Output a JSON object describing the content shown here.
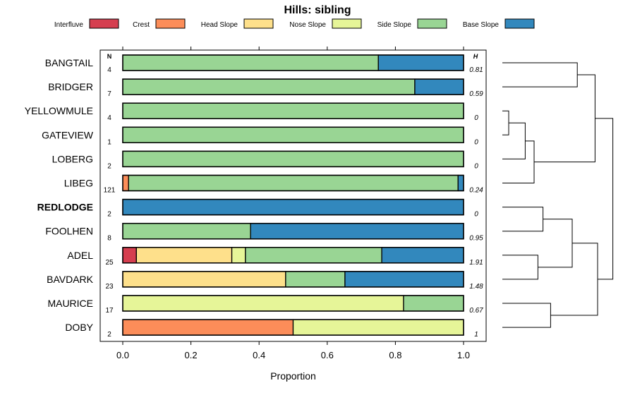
{
  "chart_data": {
    "type": "bar",
    "subtype": "stacked-horizontal-proportion",
    "title": "Hills: sibling",
    "xlabel": "Proportion",
    "ylabel": "",
    "xlim": [
      0,
      1
    ],
    "x_ticks": [
      0.0,
      0.2,
      0.4,
      0.6,
      0.8,
      1.0
    ],
    "x_tick_labels": [
      "0.0",
      "0.2",
      "0.4",
      "0.6",
      "0.8",
      "1.0"
    ],
    "n_header": "N",
    "h_header": "H",
    "legend_position": "top",
    "legend": [
      {
        "name": "Interfluve",
        "color": "#d53e4f"
      },
      {
        "name": "Crest",
        "color": "#fc8d59"
      },
      {
        "name": "Head Slope",
        "color": "#fee08b"
      },
      {
        "name": "Nose Slope",
        "color": "#e6f598"
      },
      {
        "name": "Side Slope",
        "color": "#99d594"
      },
      {
        "name": "Base Slope",
        "color": "#3288bd"
      }
    ],
    "categories": [
      "BANGTAIL",
      "BRIDGER",
      "YELLOWMULE",
      "GATEVIEW",
      "LOBERG",
      "LIBEG",
      "REDLODGE",
      "FOOLHEN",
      "ADEL",
      "BAVDARK",
      "MAURICE",
      "DOBY"
    ],
    "highlighted_category": "REDLODGE",
    "n_values": [
      "4",
      "7",
      "4",
      "1",
      "2",
      "121",
      "2",
      "8",
      "25",
      "23",
      "17",
      "2"
    ],
    "h_values": [
      "0.81",
      "0.59",
      "0",
      "0",
      "0",
      "0.24",
      "0",
      "0.95",
      "1.91",
      "1.48",
      "0.67",
      "1"
    ],
    "series": [
      {
        "name": "Interfluve",
        "values": [
          0,
          0,
          0,
          0,
          0,
          0,
          0,
          0,
          0.04,
          0,
          0,
          0
        ]
      },
      {
        "name": "Crest",
        "values": [
          0,
          0,
          0,
          0,
          0,
          0.017,
          0,
          0,
          0,
          0,
          0,
          0.5
        ]
      },
      {
        "name": "Head Slope",
        "values": [
          0,
          0,
          0,
          0,
          0,
          0,
          0,
          0,
          0.28,
          0.478,
          0,
          0
        ]
      },
      {
        "name": "Nose Slope",
        "values": [
          0,
          0,
          0,
          0,
          0,
          0,
          0,
          0,
          0.04,
          0,
          0.824,
          0.5
        ]
      },
      {
        "name": "Side Slope",
        "values": [
          0.75,
          0.857,
          1,
          1,
          1,
          0.967,
          0,
          0.375,
          0.4,
          0.174,
          0.176,
          0
        ]
      },
      {
        "name": "Base Slope",
        "values": [
          0.25,
          0.143,
          0,
          0,
          0,
          0.016,
          1,
          0.625,
          0.24,
          0.348,
          0,
          0
        ]
      }
    ],
    "dendrogram": {
      "merges": [
        [
          -1,
          -2,
          0.59
        ],
        [
          -3,
          -4,
          0.05
        ],
        [
          -5,
          2,
          0.18
        ],
        [
          -6,
          3,
          0.25
        ],
        [
          1,
          4,
          0.73
        ],
        [
          -7,
          -8,
          0.32
        ],
        [
          -9,
          -10,
          0.28
        ],
        [
          6,
          7,
          0.55
        ],
        [
          -11,
          -12,
          0.38
        ],
        [
          8,
          9,
          0.75
        ],
        [
          5,
          10,
          0.87
        ]
      ]
    }
  }
}
